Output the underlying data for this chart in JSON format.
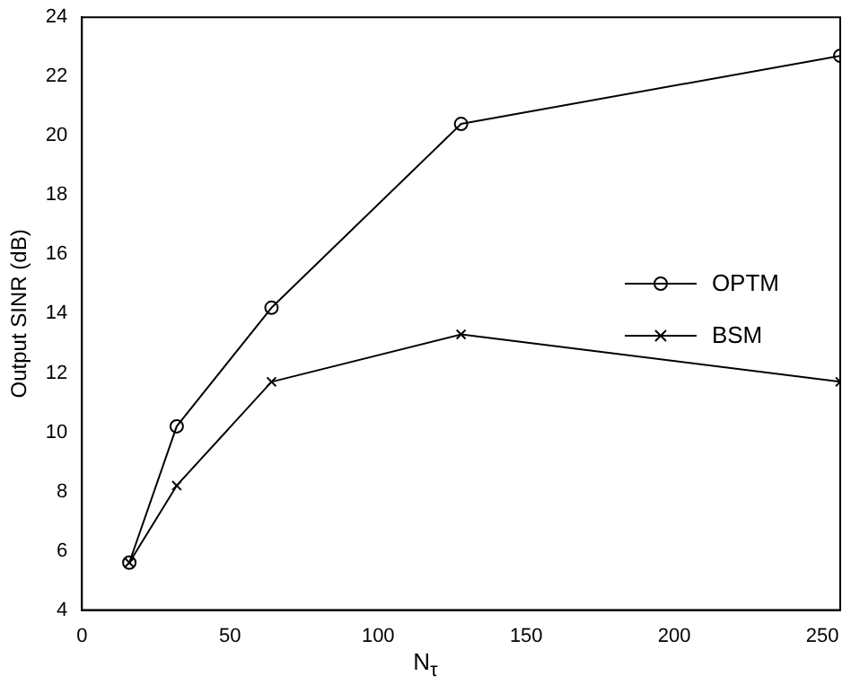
{
  "chart_data": {
    "type": "line",
    "xlabel": "N$_{τ}$",
    "ylabel": "Output SINR (dB)",
    "x": [
      16,
      32,
      64,
      128,
      256
    ],
    "series": [
      {
        "name": "OPTM",
        "color": "#000000",
        "marker": "circle",
        "values": [
          5.6,
          10.2,
          14.2,
          20.4,
          22.7
        ]
      },
      {
        "name": "BSM",
        "color": "#000000",
        "marker": "cross",
        "values": [
          5.6,
          8.2,
          11.7,
          13.3,
          11.7
        ]
      }
    ],
    "xlim": [
      0,
      256
    ],
    "xticks": [
      0,
      50,
      100,
      150,
      200,
      250
    ],
    "ylim": [
      4,
      24
    ],
    "yticks": [
      4,
      6,
      8,
      10,
      12,
      14,
      16,
      18,
      20,
      22,
      24
    ],
    "grid": false,
    "legend": "right",
    "line_style": "solid"
  }
}
